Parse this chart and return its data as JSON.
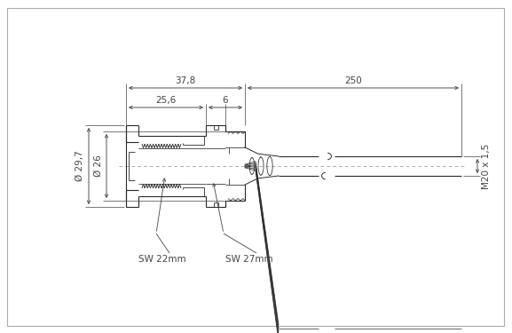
{
  "bg_color": "#ffffff",
  "line_color": "#2a2a2a",
  "dim_color": "#444444",
  "fig_width": 5.77,
  "fig_height": 3.75,
  "dim_37_8": "37,8",
  "dim_25_6": "25,6",
  "dim_6": "6",
  "dim_250": "250",
  "dim_29_7": "Ø 29,7",
  "dim_26": "Ø 26",
  "dim_M20": "M20 x 1,5",
  "label_SW22": "SW 22mm",
  "label_SW27": "SW 27mm"
}
